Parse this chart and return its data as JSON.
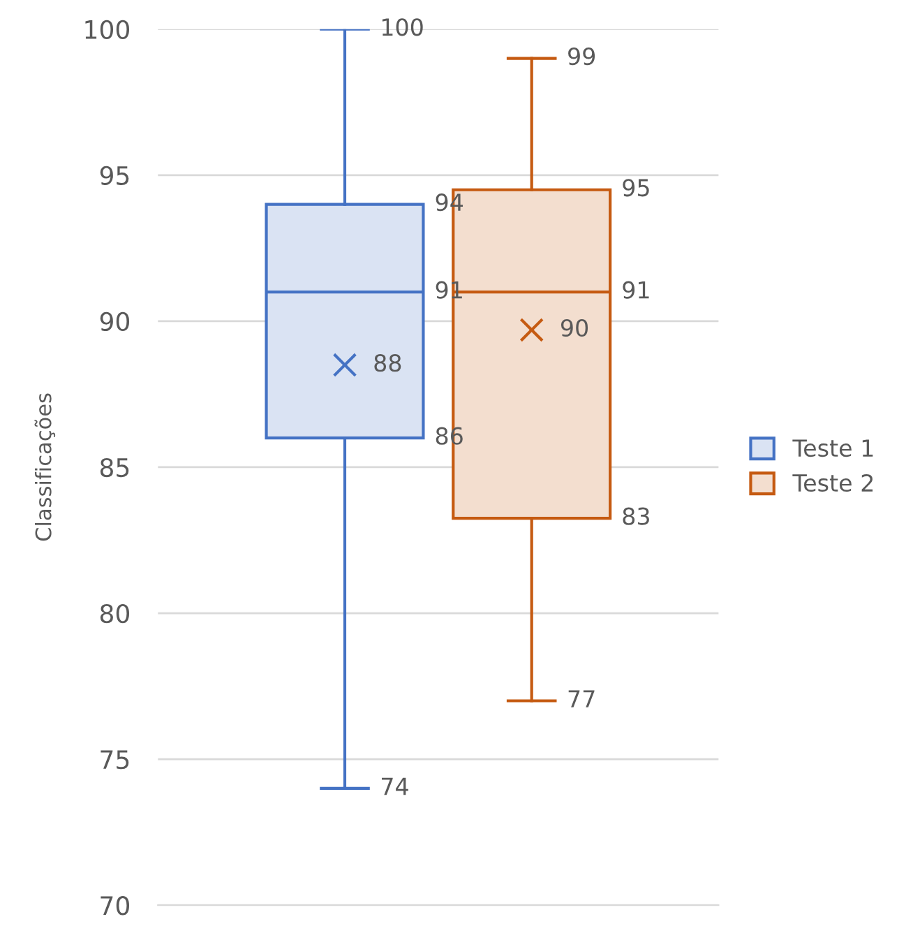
{
  "chart_data": {
    "type": "box",
    "ylabel": "Classificações",
    "categories": [
      null
    ],
    "series": [
      {
        "name": "Teste 1",
        "color": "#4472c4",
        "boxes": [
          {
            "low": 74,
            "q1": 86,
            "median": 91,
            "q3": 94,
            "high": 100,
            "mean": 88.5
          }
        ]
      },
      {
        "name": "Teste 2",
        "color": "#c55a11",
        "boxes": [
          {
            "low": 77,
            "q1": 83.25,
            "median": 91,
            "q3": 94.5,
            "high": 99,
            "mean": 89.7
          }
        ]
      }
    ],
    "annotations": [
      "74",
      "86",
      "91",
      "94",
      "100",
      "88",
      "77",
      "83",
      "91",
      "95",
      "99",
      "90"
    ],
    "ylim": [
      70,
      100
    ],
    "yticks": [
      70,
      75,
      80,
      85,
      90,
      95,
      100
    ],
    "grid": "y",
    "legend": "right",
    "marker": "cross"
  }
}
